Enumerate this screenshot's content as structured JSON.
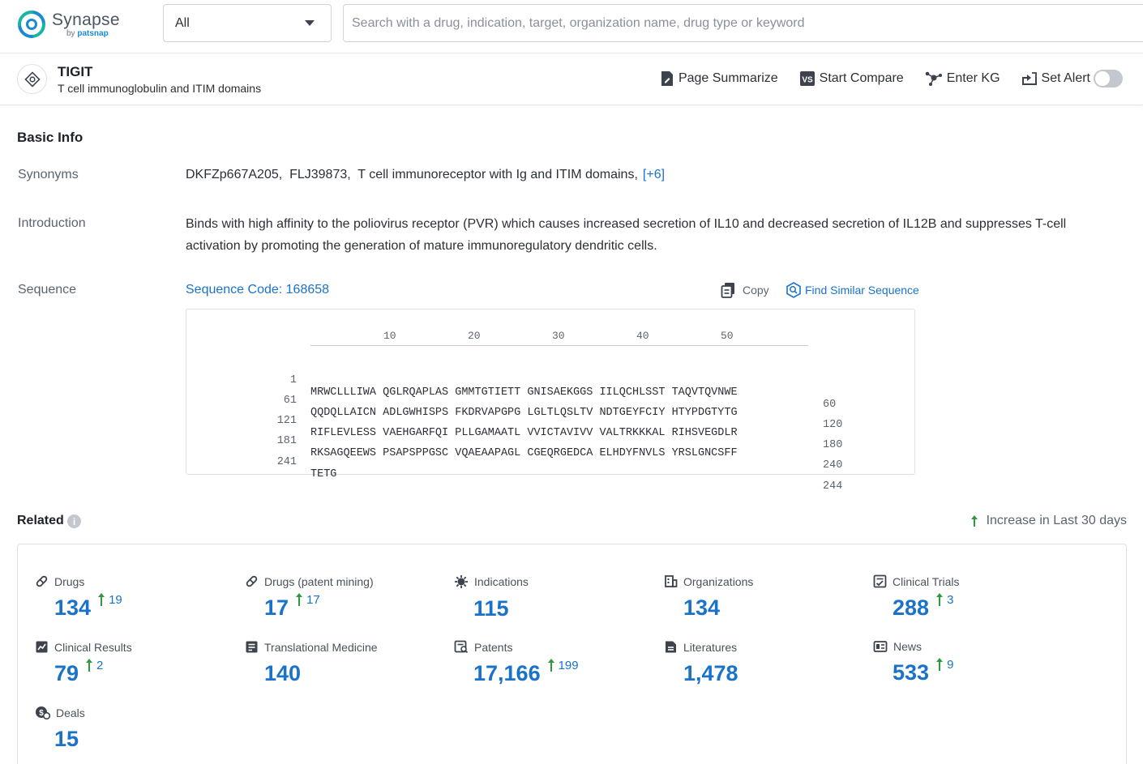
{
  "app": {
    "name": "Synapse",
    "by": "by",
    "brand": "patsnap"
  },
  "search": {
    "scope": "All",
    "placeholder": "Search with a drug, indication, target, organization name, drug type or keyword"
  },
  "target": {
    "name": "TIGIT",
    "full_name": "T cell immunoglobulin and ITIM domains"
  },
  "actions": {
    "page_summarize": "Page Summarize",
    "start_compare": "Start Compare",
    "enter_kg": "Enter KG",
    "set_alert": "Set Alert",
    "set_alert_on": false
  },
  "basic_info": {
    "title": "Basic Info",
    "synonyms_label": "Synonyms",
    "synonyms": "DKFZp667A205,  FLJ39873,  T cell immunoreceptor with Ig and ITIM domains,",
    "synonyms_more": "[+6]",
    "intro_label": "Introduction",
    "intro": "Binds with high affinity to the poliovirus receptor (PVR) which causes increased secretion of IL10 and decreased secretion of IL12B and suppresses T-cell activation by promoting the generation of mature immunoregulatory dendritic cells.",
    "sequence_label": "Sequence",
    "sequence_code": "Sequence Code: 168658",
    "copy": "Copy",
    "find_similar": "Find Similar Sequence",
    "ruler": [
      "10",
      "20",
      "30",
      "40",
      "50"
    ],
    "rows": [
      {
        "start": "1",
        "residues": "MRWCLLLIWA QGLRQAPLAS GMMTGTIETT GNISAEKGGS IILQCHLSST TAQVTQVNWE",
        "end": "60"
      },
      {
        "start": "61",
        "residues": "QQDQLLAICN ADLGWHISPS FKDRVAPGPG LGLTLQSLTV NDTGEYFCIY HTYPDGTYTG",
        "end": "120"
      },
      {
        "start": "121",
        "residues": "RIFLEVLESS VAEHGARFQI PLLGAMAATL VVICTAVIVV VALTRKKKAL RIHSVEGDLR",
        "end": "180"
      },
      {
        "start": "181",
        "residues": "RKSAGQEEWS PSAPSPPGSC VQAEAAPAGL CGEQRGEDCA ELHDYFNVLS YRSLGNCSFF",
        "end": "240"
      },
      {
        "start": "241",
        "residues": "TETG",
        "end": "244"
      }
    ]
  },
  "related": {
    "title": "Related",
    "legend": "Increase in Last 30 days",
    "stats": [
      {
        "label": "Drugs",
        "value": "134",
        "increase": "19",
        "icon": "pill-icon"
      },
      {
        "label": "Drugs (patent mining)",
        "value": "17",
        "increase": "17",
        "icon": "pill-icon"
      },
      {
        "label": "Indications",
        "value": "115",
        "increase": "",
        "icon": "virus-icon"
      },
      {
        "label": "Organizations",
        "value": "134",
        "increase": "",
        "icon": "building-icon"
      },
      {
        "label": "Clinical Trials",
        "value": "288",
        "increase": "3",
        "icon": "clipboard-icon"
      },
      {
        "label": "Clinical Results",
        "value": "79",
        "increase": "2",
        "icon": "results-icon"
      },
      {
        "label": "Translational Medicine",
        "value": "140",
        "increase": "",
        "icon": "flask-doc-icon"
      },
      {
        "label": "Patents",
        "value": "17,166",
        "increase": "199",
        "icon": "patent-icon"
      },
      {
        "label": "Literatures",
        "value": "1,478",
        "increase": "",
        "icon": "document-icon"
      },
      {
        "label": "News",
        "value": "533",
        "increase": "9",
        "icon": "newspaper-icon"
      },
      {
        "label": "Deals",
        "value": "15",
        "increase": "",
        "icon": "deal-icon"
      }
    ]
  },
  "colors": {
    "link": "#1a73c9",
    "increase_arrow": "#2f9a3c",
    "brand_teal": "#19b5a5"
  }
}
